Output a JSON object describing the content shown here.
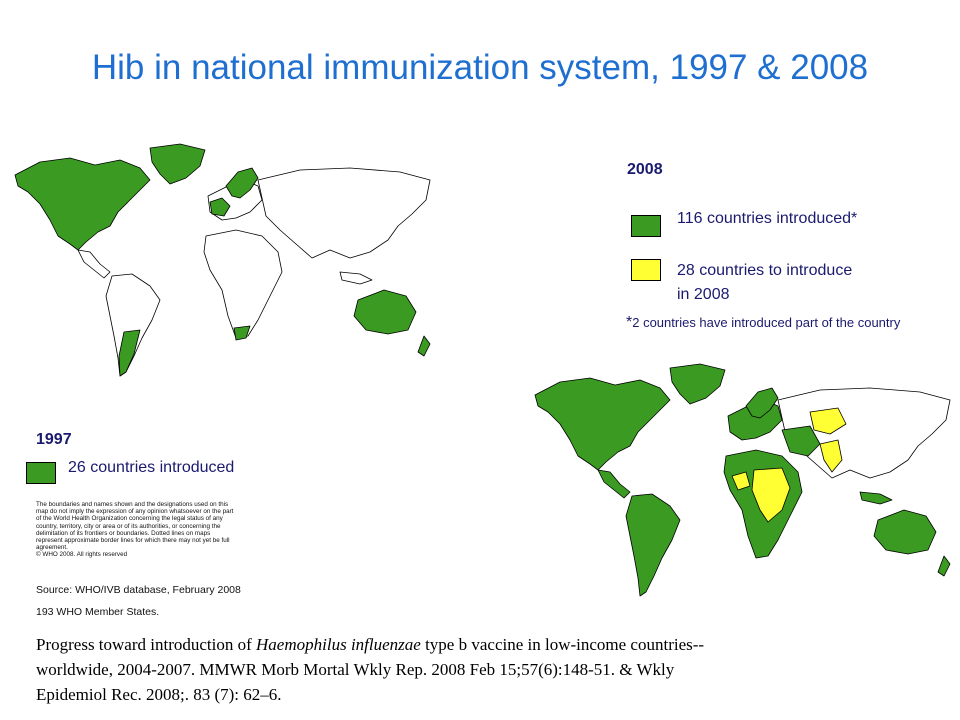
{
  "title": "Hib in national immunization system, 1997 & 2008",
  "legend_2008": {
    "year": "2008",
    "introduced_label": "116 countries introduced*",
    "to_introduce_label_line1": "28 countries to introduce",
    "to_introduce_label_line2": "in 2008",
    "footnote_star": "*",
    "footnote_text": "2 countries have introduced part of the country"
  },
  "legend_1997": {
    "year": "1997",
    "introduced_label": "26 countries introduced"
  },
  "disclaimer": {
    "line1": "The boundaries and names shown and the designations used on this",
    "line2": "map do not imply the expression of any opinion whatsoever on the part",
    "line3": "of the World Health Organization concerning the legal status of any",
    "line4": "country, territory, city or area or of its authorities, or concerning the",
    "line5": "delimitation of its frontiers or boundaries.  Dotted lines on maps",
    "line6": "represent approximate border lines for which there may not yet be full",
    "line7": "agreement.",
    "copyright": "© WHO 2008.  All rights reserved"
  },
  "source": "Source: WHO/IVB database, February 2008",
  "member_states": "193 WHO Member States.",
  "citation": {
    "line1_prefix": "Progress toward introduction of ",
    "line1_italic": "Haemophilus influenzae",
    "line1_suffix": " type b vaccine in low-income countries--",
    "line2": "worldwide, 2004-2007. MMWR Morb Mortal Wkly Rep. 2008 Feb 15;57(6):148-51.  & Wkly",
    "line3": "Epidemiol Rec. 2008;. 83 (7):  62–6."
  },
  "colors": {
    "title": "#1f6fd1",
    "introduced": "#3a9a22",
    "to_introduce": "#ffff33",
    "not_introduced": "#ffffff",
    "legend_text": "#1a1a6e"
  }
}
